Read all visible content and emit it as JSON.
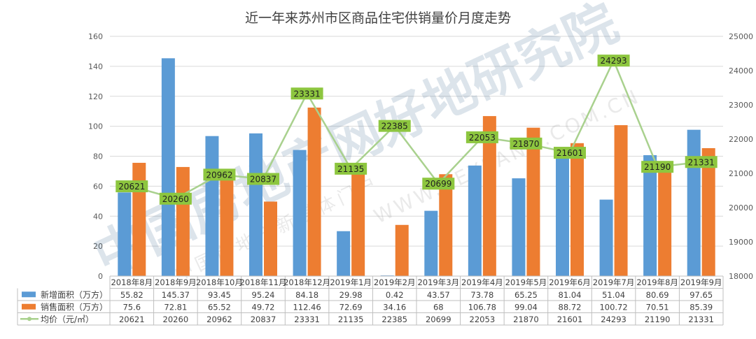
{
  "chart_data": {
    "type": "bar",
    "title": "近一年来苏州市区商品住宅供销量价月度走势",
    "categories": [
      "2018年8月",
      "2018年9月",
      "2018年10月",
      "2018年11月",
      "2018年12月",
      "2019年1月",
      "2019年2月",
      "2019年3月",
      "2019年4月",
      "2019年5月",
      "2019年6月",
      "2019年7月",
      "2019年8月",
      "2019年9月"
    ],
    "series": [
      {
        "name": "新增面积（万方）",
        "kind": "bar",
        "axis": "left",
        "color": "#5b9bd5",
        "values": [
          55.82,
          145.37,
          93.45,
          95.24,
          84.18,
          29.98,
          0.42,
          43.57,
          73.78,
          65.25,
          81.04,
          51.04,
          80.69,
          97.65
        ]
      },
      {
        "name": "销售面积（万方）",
        "kind": "bar",
        "axis": "left",
        "color": "#ed7d31",
        "values": [
          75.6,
          72.81,
          65.52,
          49.72,
          112.46,
          72.69,
          34.16,
          68,
          106.78,
          99.04,
          88.72,
          100.72,
          70.51,
          85.39
        ]
      },
      {
        "name": "均价（元/㎡）",
        "kind": "line",
        "axis": "right",
        "color": "#a9d18e",
        "label_color": "#8dc63f",
        "values": [
          20621,
          20260,
          20962,
          20837,
          23331,
          21135,
          22385,
          20699,
          22053,
          21870,
          21601,
          24293,
          21190,
          21331
        ]
      }
    ],
    "y_left": {
      "min": 0,
      "max": 160,
      "ticks": [
        0,
        20,
        40,
        60,
        80,
        100,
        120,
        140,
        160
      ]
    },
    "y_right": {
      "min": 18000,
      "max": 25000,
      "ticks": [
        18000,
        19000,
        20000,
        21000,
        22000,
        23000,
        24000,
        25000
      ]
    },
    "grid": true,
    "legend": "data-table",
    "data_table": true,
    "watermark": {
      "logo_text": "中国房地产网",
      "brand_text": "好地研究院",
      "url_text": "WWW.KEYLAND.COM.CN",
      "side_text": "中国房地产新媒体门户"
    }
  }
}
